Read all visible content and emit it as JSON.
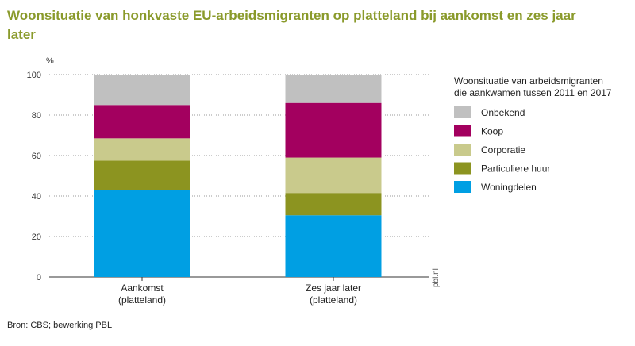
{
  "title": "Woonsituatie van honkvaste EU-arbeidsmigranten op platteland bij aankomst en zes jaar later",
  "source": "Bron: CBS; bewerking PBL",
  "watermark": "pbl.nl",
  "chart_data": {
    "type": "bar",
    "stacked": true,
    "unit_label": "%",
    "ylim": [
      0,
      100
    ],
    "yticks": [
      0,
      20,
      40,
      60,
      80,
      100
    ],
    "categories": [
      [
        "Aankomst",
        "(platteland)"
      ],
      [
        "Zes jaar later",
        "(platteland)"
      ]
    ],
    "legend_title": [
      "Woonsituatie van arbeidsmigranten",
      "die aankwamen tussen 2011 en 2017"
    ],
    "legend_position": "right",
    "grid": "horizontal-dotted",
    "series": [
      {
        "name": "Woningdelen",
        "color": "#009fe3",
        "values": [
          43,
          30.5
        ]
      },
      {
        "name": "Particuliere huur",
        "color": "#8c9420",
        "values": [
          14.5,
          11
        ]
      },
      {
        "name": "Corporatie",
        "color": "#c9ca8c",
        "values": [
          11,
          17.5
        ]
      },
      {
        "name": "Koop",
        "color": "#a3005f",
        "values": [
          16.5,
          27
        ]
      },
      {
        "name": "Onbekend",
        "color": "#c0c0c0",
        "values": [
          15,
          14
        ]
      }
    ]
  }
}
